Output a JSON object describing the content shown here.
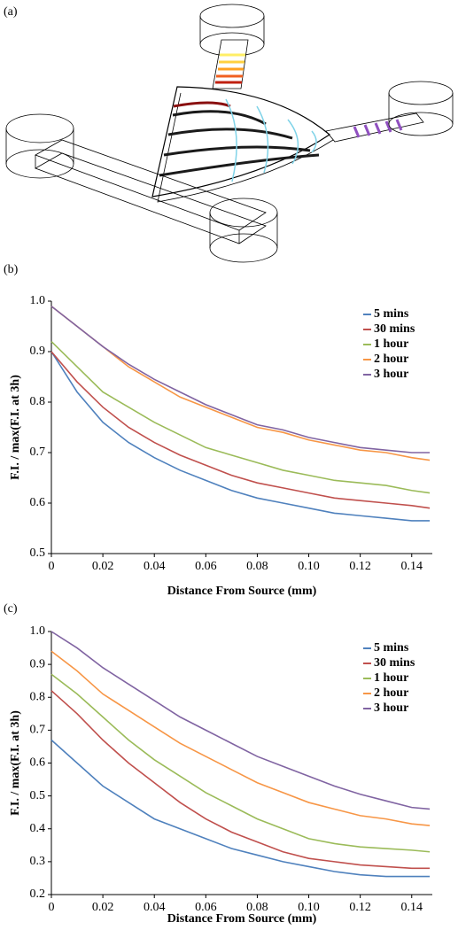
{
  "diagram": {
    "label": "(a)"
  },
  "chart_data": [
    {
      "type": "line",
      "panel_label": "(b)",
      "x_label": "Distance From Source (mm)",
      "y_label": "F.I. / max(F.I. at 3h)",
      "x": [
        0,
        0.01,
        0.02,
        0.03,
        0.04,
        0.05,
        0.06,
        0.07,
        0.08,
        0.09,
        0.1,
        0.11,
        0.12,
        0.13,
        0.14,
        0.147
      ],
      "series": [
        {
          "name": "5 mins",
          "color": "#4f81bd",
          "values": [
            0.9,
            0.82,
            0.76,
            0.72,
            0.69,
            0.665,
            0.645,
            0.625,
            0.61,
            0.6,
            0.59,
            0.58,
            0.575,
            0.57,
            0.565,
            0.565
          ]
        },
        {
          "name": "30 mins",
          "color": "#c0504d",
          "values": [
            0.9,
            0.84,
            0.79,
            0.75,
            0.72,
            0.695,
            0.675,
            0.655,
            0.64,
            0.63,
            0.62,
            0.61,
            0.605,
            0.6,
            0.595,
            0.59
          ]
        },
        {
          "name": "1 hour",
          "color": "#9bbb59",
          "values": [
            0.92,
            0.87,
            0.82,
            0.79,
            0.76,
            0.735,
            0.71,
            0.695,
            0.68,
            0.665,
            0.655,
            0.645,
            0.64,
            0.635,
            0.625,
            0.62
          ]
        },
        {
          "name": "2 hour",
          "color": "#f79646",
          "values": [
            0.99,
            0.95,
            0.91,
            0.87,
            0.84,
            0.81,
            0.79,
            0.77,
            0.75,
            0.74,
            0.725,
            0.715,
            0.705,
            0.7,
            0.69,
            0.685
          ]
        },
        {
          "name": "3 hour",
          "color": "#8064a2",
          "values": [
            0.99,
            0.95,
            0.91,
            0.875,
            0.845,
            0.82,
            0.795,
            0.775,
            0.755,
            0.745,
            0.73,
            0.72,
            0.71,
            0.705,
            0.7,
            0.7
          ]
        }
      ],
      "xlim": [
        0,
        0.148
      ],
      "xticks": [
        0,
        0.02,
        0.04,
        0.06,
        0.08,
        {
          "value": 0.1,
          "label": "0.10"
        },
        0.12,
        0.14
      ],
      "ylim": [
        0.5,
        1
      ],
      "yticks": [
        0.5,
        0.6,
        0.7,
        0.8,
        0.9,
        {
          "value": 1,
          "label": "1.0"
        }
      ],
      "legend": "upper right"
    },
    {
      "type": "line",
      "panel_label": "(c)",
      "x_label": "Distance From Source (mm)",
      "y_label": "F.I. / max(F.I. at 3h)",
      "x": [
        0,
        0.01,
        0.02,
        0.03,
        0.04,
        0.05,
        0.06,
        0.07,
        0.08,
        0.09,
        0.1,
        0.11,
        0.12,
        0.13,
        0.14,
        0.147
      ],
      "series": [
        {
          "name": "5 mins",
          "color": "#4f81bd",
          "values": [
            0.67,
            0.6,
            0.53,
            0.48,
            0.43,
            0.4,
            0.37,
            0.34,
            0.32,
            0.3,
            0.285,
            0.27,
            0.26,
            0.255,
            0.255,
            0.255
          ]
        },
        {
          "name": "30 mins",
          "color": "#c0504d",
          "values": [
            0.82,
            0.75,
            0.67,
            0.6,
            0.54,
            0.48,
            0.43,
            0.39,
            0.36,
            0.33,
            0.31,
            0.3,
            0.29,
            0.285,
            0.28,
            0.28
          ]
        },
        {
          "name": "1 hour",
          "color": "#9bbb59",
          "values": [
            0.87,
            0.81,
            0.74,
            0.67,
            0.61,
            0.56,
            0.51,
            0.47,
            0.43,
            0.4,
            0.37,
            0.355,
            0.345,
            0.34,
            0.335,
            0.33
          ]
        },
        {
          "name": "2 hour",
          "color": "#f79646",
          "values": [
            0.94,
            0.88,
            0.81,
            0.76,
            0.71,
            0.66,
            0.62,
            0.58,
            0.54,
            0.51,
            0.48,
            0.46,
            0.44,
            0.43,
            0.415,
            0.41
          ]
        },
        {
          "name": "3 hour",
          "color": "#8064a2",
          "values": [
            1,
            0.95,
            0.89,
            0.84,
            0.79,
            0.74,
            0.7,
            0.66,
            0.62,
            0.59,
            0.56,
            0.53,
            0.505,
            0.485,
            0.465,
            0.46
          ]
        }
      ],
      "xlim": [
        0,
        0.148
      ],
      "xticks": [
        0,
        0.02,
        0.04,
        0.06,
        0.08,
        {
          "value": 0.1,
          "label": "0.10"
        },
        0.12,
        0.14
      ],
      "ylim": [
        0.2,
        1
      ],
      "yticks": [
        0.2,
        0.3,
        0.4,
        0.5,
        0.6,
        0.7,
        0.8,
        0.9,
        {
          "value": 1,
          "label": "1.0"
        }
      ],
      "legend": "upper right"
    }
  ]
}
